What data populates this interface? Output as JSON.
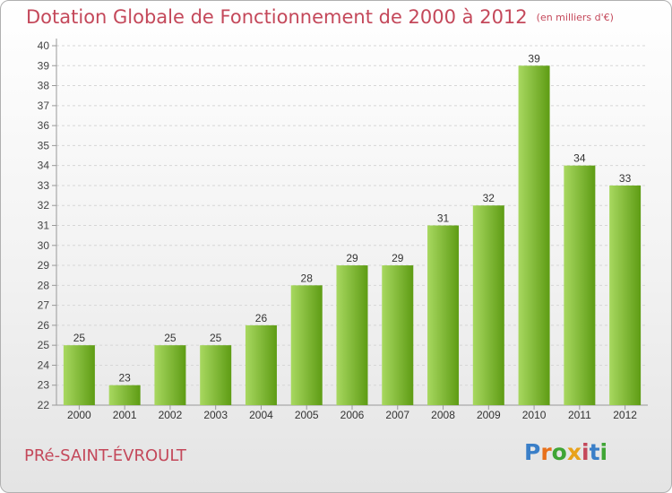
{
  "header": {
    "title": "Dotation Globale de Fonctionnement de 2000 à 2012",
    "subtitle": "(en milliers d'€)"
  },
  "footer": {
    "town": "PRé-SAINT-ÉVROULT",
    "logo_letters": [
      "P",
      "r",
      "o",
      "x",
      "i",
      "t",
      "i"
    ],
    "logo_colors": [
      "#3a7fc8",
      "#e8701a",
      "#3fa535",
      "#e8a21a",
      "#c4485a",
      "#3a7fc8",
      "#3fa535"
    ]
  },
  "colors": {
    "bar_light": "#a8d860",
    "bar_dark": "#5e9c14",
    "title": "#c4485a"
  },
  "chart_data": {
    "type": "bar",
    "categories": [
      "2000",
      "2001",
      "2002",
      "2003",
      "2004",
      "2005",
      "2006",
      "2007",
      "2008",
      "2009",
      "2010",
      "2011",
      "2012"
    ],
    "values": [
      25,
      23,
      25,
      25,
      26,
      28,
      29,
      29,
      31,
      32,
      39,
      34,
      33
    ],
    "ylim": [
      22,
      40
    ],
    "yticks": [
      22,
      23,
      24,
      25,
      26,
      27,
      28,
      29,
      30,
      31,
      32,
      33,
      34,
      35,
      36,
      37,
      38,
      39,
      40
    ],
    "grid": true
  }
}
